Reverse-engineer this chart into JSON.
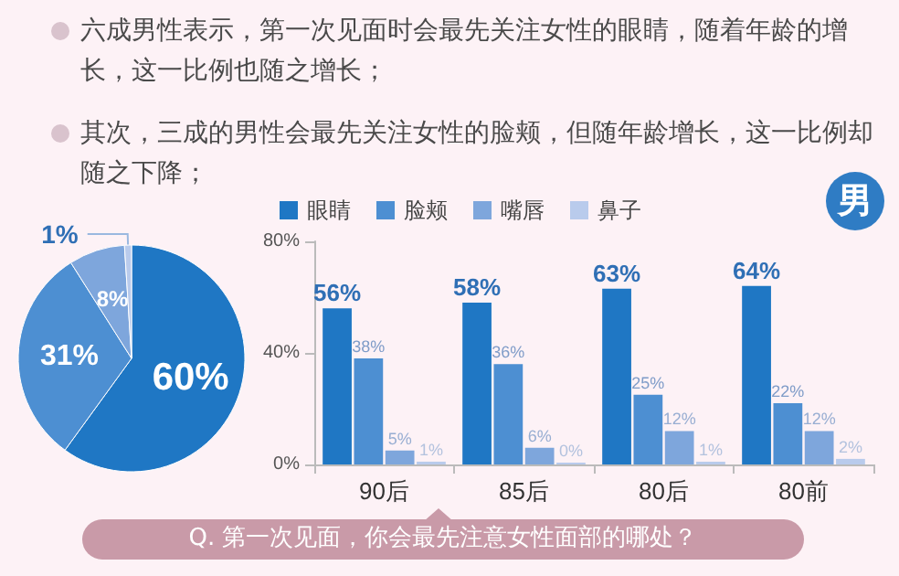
{
  "chart_data": [
    {
      "type": "pie",
      "categories": [
        null,
        null,
        null,
        null
      ],
      "values": [
        60,
        31,
        8,
        1
      ],
      "colors": [
        "#1f77c4",
        "#4d8fd2",
        "#7ea6dc",
        "#b9cbec"
      ],
      "value_labels": [
        "60%",
        "31%",
        "8%",
        "1%"
      ],
      "legend": false,
      "annotations": [
        "六成男性表示，第一次见面时会最先关注女性的眼睛，随着年龄的增长，这一比例也随之增长；",
        "其次，三成的男性会最先关注女性的脸颊，但随年龄增长，这一比例却随之下降；",
        "Q. 第一次见面，你会最先注意女性面部的哪处？"
      ]
    },
    {
      "type": "bar",
      "categories": [
        "90后",
        "85后",
        "80后",
        "80前"
      ],
      "series": [
        {
          "name": "眼睛",
          "color": "#1f77c4",
          "values": [
            56,
            58,
            63,
            64
          ],
          "value_labels": [
            "56%",
            "58%",
            "63%",
            "64%"
          ]
        },
        {
          "name": "脸颊",
          "color": "#4d8fd2",
          "values": [
            38,
            36,
            25,
            22
          ],
          "value_labels": [
            "38%",
            "36%",
            "25%",
            "22%"
          ]
        },
        {
          "name": "嘴唇",
          "color": "#7ea6dc",
          "values": [
            5,
            6,
            12,
            12
          ],
          "value_labels": [
            "5%",
            "6%",
            "12%",
            "12%"
          ]
        },
        {
          "name": "鼻子",
          "color": "#b9cbec",
          "values": [
            1,
            0,
            1,
            2
          ],
          "value_labels": [
            "1%",
            "0%",
            "1%",
            "2%"
          ]
        }
      ],
      "ylim": [
        0,
        80
      ],
      "yticks": [
        {
          "value": 0,
          "label": "0%"
        },
        {
          "value": 40,
          "label": "40%"
        },
        {
          "value": 80,
          "label": "80%"
        }
      ],
      "grid": false,
      "legend": "top left",
      "annotations": [
        "男"
      ]
    }
  ]
}
